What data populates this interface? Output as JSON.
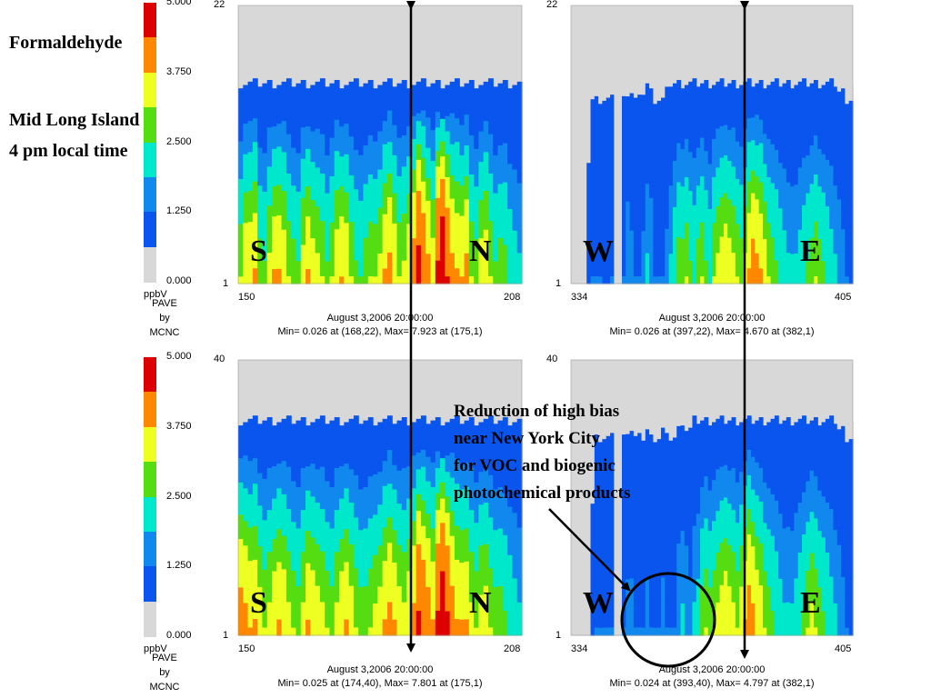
{
  "annotations": {
    "title": "Formaldehyde",
    "location_line1": "Mid Long Island",
    "location_line2": "4 pm local time",
    "note_lines": [
      "Reduction of high bias",
      "near New York City",
      "for VOC and biogenic",
      "photochemical products"
    ]
  },
  "legend": {
    "unit": "ppbV",
    "ticks": [
      "5.000",
      "3.750",
      "2.500",
      "1.250",
      "0.000"
    ],
    "pave_lines": [
      "PAVE",
      "by",
      "MCNC"
    ],
    "colors": [
      "#dd0000",
      "#ff8800",
      "#eeff22",
      "#55dd11",
      "#00e8cc",
      "#1188ee",
      "#0a55ee",
      "#d8d8d8"
    ]
  },
  "colors": {
    "background_fill": "#d8d8d8",
    "level_bands": [
      "#d8d8d8",
      "#0a55ee",
      "#1188ee",
      "#00e8cc",
      "#55dd11",
      "#eeff22",
      "#ff8800",
      "#dd0000"
    ]
  },
  "chart_data": [
    {
      "type": "heatmap",
      "xrange": [
        150,
        208
      ],
      "yrange": [
        1,
        22
      ],
      "x_tick_labels": [
        "150",
        "208"
      ],
      "y_tick_labels": [
        "22",
        "1"
      ],
      "datetime": "August 3,2006 20:00:00",
      "stats": "Min=   0.026 at (168,22), Max=   7.923 at (175,1)",
      "direction_left": "S",
      "direction_right": "N",
      "top_height": 0.72,
      "columns": [
        2.6,
        3.2,
        3.2,
        3.4,
        2.4,
        2.2,
        2.8,
        3.4,
        3.4,
        3.1,
        2.6,
        2.4,
        2.2,
        2.9,
        3.4,
        3.0,
        2.8,
        2.6,
        2.2,
        2.6,
        3.1,
        3.3,
        3.2,
        2.6,
        2.2,
        2.1,
        2.4,
        2.6,
        2.6,
        2.8,
        3.4,
        3.6,
        3.2,
        2.6,
        2.7,
        3.2,
        3.8,
        4.9,
        4.2,
        3.6,
        3.0,
        4.6,
        5.6,
        4.4,
        3.6,
        3.4,
        3.3,
        3.6,
        2.6,
        2.4,
        3.0,
        3.1,
        2.6,
        2.2,
        2.4,
        2.3,
        2.0,
        1.8,
        1.6
      ]
    },
    {
      "type": "heatmap",
      "xrange": [
        334,
        405
      ],
      "yrange": [
        1,
        22
      ],
      "x_tick_labels": [
        "334",
        "405"
      ],
      "y_tick_labels": [
        "22",
        "1"
      ],
      "datetime": "August 3,2006 20:00:00",
      "stats": "Min=   0.026 at (397,22), Max=   4.670 at (382,1)",
      "direction_left": "W",
      "direction_right": "E",
      "top_height": 0.72,
      "columns": [
        0.05,
        0.05,
        0.05,
        0.1,
        0.3,
        1.0,
        1.0,
        1.0,
        0.8,
        0.8,
        1.0,
        0.1,
        0.1,
        1.0,
        1.4,
        1.2,
        1.0,
        1.0,
        1.2,
        1.6,
        1.4,
        1.0,
        1.0,
        1.0,
        1.2,
        1.6,
        2.0,
        2.4,
        2.4,
        2.6,
        2.2,
        2.0,
        2.4,
        2.6,
        2.2,
        2.0,
        2.6,
        2.8,
        3.0,
        3.2,
        3.0,
        2.8,
        2.6,
        2.4,
        2.8,
        3.4,
        3.8,
        3.6,
        3.4,
        3.0,
        2.6,
        2.4,
        2.2,
        2.0,
        1.8,
        1.6,
        1.6,
        1.6,
        1.8,
        2.0,
        2.2,
        2.4,
        2.6,
        2.4,
        2.2,
        2.0,
        1.8,
        1.6,
        1.4,
        1.2,
        1.0,
        0.9
      ]
    },
    {
      "type": "heatmap",
      "xrange": [
        150,
        208
      ],
      "yrange": [
        1,
        40
      ],
      "x_tick_labels": [
        "150",
        "208"
      ],
      "y_tick_labels": [
        "40",
        "1"
      ],
      "datetime": "August 3,2006 20:00:00",
      "stats": "Min=   0.025 at (174,40), Max=   7.801 at (175,1)",
      "direction_left": "S",
      "direction_right": "N",
      "top_height": 0.78,
      "columns": [
        3.8,
        3.6,
        3.3,
        3.4,
        3.0,
        2.6,
        2.8,
        3.2,
        3.4,
        3.2,
        2.8,
        2.6,
        2.4,
        2.8,
        3.4,
        3.2,
        3.0,
        2.8,
        2.6,
        2.4,
        2.8,
        3.2,
        3.4,
        3.0,
        2.6,
        2.4,
        2.4,
        2.6,
        2.8,
        3.0,
        3.4,
        3.6,
        3.4,
        3.0,
        2.8,
        3.2,
        3.6,
        4.6,
        4.2,
        3.8,
        3.4,
        4.6,
        5.4,
        4.6,
        3.8,
        3.4,
        3.4,
        3.4,
        2.8,
        2.6,
        2.9,
        3.0,
        2.6,
        2.4,
        2.4,
        2.2,
        2.0,
        1.8,
        1.6
      ]
    },
    {
      "type": "heatmap",
      "xrange": [
        334,
        405
      ],
      "yrange": [
        1,
        40
      ],
      "x_tick_labels": [
        "334",
        "405"
      ],
      "y_tick_labels": [
        "40",
        "1"
      ],
      "datetime": "August 3,2006 20:00:00",
      "stats": "Min=   0.024 at (393,40), Max=   4.797 at (382,1)",
      "direction_left": "W",
      "direction_right": "E",
      "top_height": 0.78,
      "columns": [
        0.05,
        0.05,
        0.05,
        0.05,
        0.1,
        0.3,
        1.0,
        1.0,
        1.0,
        1.0,
        1.0,
        0.1,
        0.1,
        1.0,
        1.2,
        1.2,
        1.0,
        1.0,
        1.0,
        1.2,
        1.0,
        1.0,
        1.0,
        1.2,
        1.0,
        1.0,
        1.0,
        1.4,
        1.6,
        1.4,
        1.2,
        1.6,
        1.8,
        2.4,
        2.6,
        2.4,
        2.6,
        2.8,
        3.0,
        3.2,
        3.0,
        2.8,
        2.6,
        3.0,
        3.4,
        3.8,
        3.6,
        3.2,
        3.0,
        2.6,
        2.4,
        2.2,
        2.0,
        1.8,
        1.6,
        1.6,
        1.6,
        1.8,
        2.0,
        2.2,
        2.6,
        2.8,
        2.6,
        2.4,
        2.2,
        2.0,
        1.8,
        1.6,
        1.4,
        1.2,
        1.0,
        0.9
      ]
    }
  ]
}
